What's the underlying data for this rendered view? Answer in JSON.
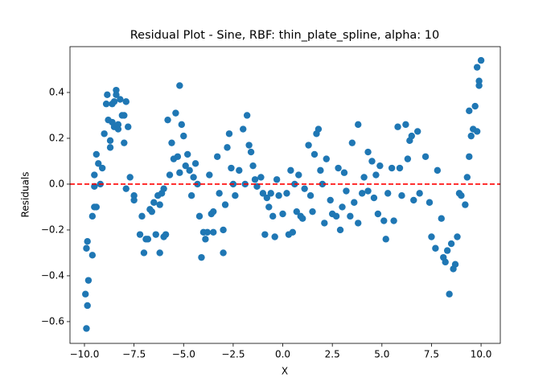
{
  "chart_data": {
    "type": "scatter",
    "title": "Residual Plot - Sine, RBF: thin_plate_spline, alpha: 10",
    "x_label": "X",
    "y_label": "Residuals",
    "color": "#1f77b4",
    "hline": 0,
    "hline_color": "red",
    "xlim": [
      -10.73,
      10.97
    ],
    "ylim": [
      -0.695,
      0.6
    ],
    "xticks": [
      {
        "value": -10,
        "label": "−10.0"
      },
      {
        "value": -7.5,
        "label": "−7.5"
      },
      {
        "value": -5,
        "label": "−5.0"
      },
      {
        "value": -2.5,
        "label": "−2.5"
      },
      {
        "value": 0,
        "label": "0.0"
      },
      2.5,
      {
        "value": 5,
        "label": "5.0"
      },
      7.5,
      {
        "value": 10,
        "label": "10.0"
      }
    ],
    "yticks": [
      {
        "value": -0.6,
        "label": "−0.6"
      },
      {
        "value": -0.4,
        "label": "−0.4"
      },
      {
        "value": -0.2,
        "label": "−0.2"
      },
      {
        "value": 0,
        "label": "0.0"
      },
      0.2,
      0.4
    ],
    "x": [
      -9.9,
      -9.95,
      -9.85,
      -9.8,
      -9.9,
      -9.85,
      -9.6,
      -9.6,
      -9.5,
      -9.4,
      -9.5,
      -9.4,
      -9.3,
      -9.2,
      -9.5,
      -9.1,
      -9.0,
      -8.9,
      -8.85,
      -8.8,
      -8.7,
      -8.7,
      -8.6,
      -8.6,
      -8.5,
      -8.5,
      -8.4,
      -8.4,
      -8.3,
      -8.3,
      -8.2,
      -8.1,
      -8.0,
      -8.0,
      -7.9,
      -7.9,
      -7.8,
      -7.7,
      -7.5,
      -7.5,
      -7.2,
      -7.1,
      -7.0,
      -6.9,
      -6.8,
      -6.7,
      -6.6,
      -6.5,
      -6.4,
      -6.3,
      -6.2,
      -6.2,
      -6.1,
      -6.0,
      -6.0,
      -5.9,
      -5.8,
      -5.7,
      -5.6,
      -5.5,
      -5.4,
      -5.3,
      -5.2,
      -5.2,
      -5.1,
      -5.0,
      -4.9,
      -4.8,
      -4.7,
      -4.6,
      -4.5,
      -4.4,
      -4.3,
      -4.2,
      -4.1,
      -4.0,
      -3.9,
      -3.8,
      -3.7,
      -3.6,
      -3.5,
      -3.5,
      -3.3,
      -3.2,
      -3.0,
      -3.0,
      -2.9,
      -2.8,
      -2.7,
      -2.6,
      -2.5,
      -2.4,
      -2.2,
      -2.0,
      -1.9,
      -1.8,
      -1.7,
      -1.6,
      -1.5,
      -1.4,
      -1.3,
      -1.1,
      -1.0,
      -0.9,
      -0.8,
      -0.7,
      -0.6,
      -0.5,
      -0.4,
      -0.3,
      -0.2,
      0.0,
      0.2,
      0.3,
      0.4,
      0.5,
      0.6,
      0.7,
      0.8,
      0.9,
      1.0,
      1.1,
      1.3,
      1.4,
      1.5,
      1.6,
      1.7,
      1.8,
      1.9,
      2.0,
      2.1,
      2.2,
      2.4,
      2.5,
      2.7,
      2.8,
      2.9,
      3.0,
      3.1,
      3.2,
      3.4,
      3.5,
      3.6,
      3.8,
      3.8,
      4.0,
      4.1,
      4.3,
      4.3,
      4.5,
      4.6,
      4.7,
      4.8,
      4.9,
      5.1,
      5.2,
      5.3,
      5.5,
      5.6,
      5.8,
      5.9,
      6.0,
      6.2,
      6.3,
      6.4,
      6.5,
      6.6,
      6.8,
      6.9,
      7.2,
      7.4,
      7.5,
      7.7,
      7.8,
      8.0,
      8.1,
      8.2,
      8.3,
      8.4,
      8.5,
      8.6,
      8.7,
      8.8,
      8.9,
      9.0,
      9.2,
      9.3,
      9.4,
      9.4,
      9.5,
      9.6,
      9.7,
      9.8,
      9.9,
      9.9,
      10.0,
      9.8
    ],
    "values": [
      -0.63,
      -0.48,
      -0.53,
      -0.42,
      -0.28,
      -0.25,
      -0.31,
      -0.14,
      -0.1,
      -0.1,
      0.04,
      0.13,
      0.09,
      0.0,
      -0.01,
      0.07,
      0.22,
      0.35,
      0.39,
      0.28,
      0.19,
      0.16,
      0.27,
      0.35,
      0.36,
      0.25,
      0.41,
      0.39,
      0.26,
      0.24,
      0.37,
      0.3,
      0.18,
      0.3,
      0.36,
      -0.02,
      0.25,
      0.03,
      -0.05,
      -0.07,
      -0.22,
      -0.14,
      -0.3,
      -0.24,
      -0.24,
      -0.11,
      -0.12,
      -0.08,
      -0.22,
      -0.05,
      -0.3,
      -0.09,
      -0.04,
      -0.02,
      -0.23,
      -0.22,
      0.28,
      0.04,
      0.18,
      0.11,
      0.31,
      0.12,
      0.43,
      0.05,
      0.26,
      0.21,
      0.08,
      0.13,
      0.06,
      -0.05,
      0.03,
      0.09,
      0.0,
      -0.14,
      -0.32,
      -0.21,
      -0.24,
      -0.21,
      0.04,
      -0.13,
      -0.12,
      -0.21,
      0.12,
      -0.04,
      -0.3,
      -0.2,
      -0.09,
      0.16,
      0.22,
      0.07,
      0.0,
      -0.05,
      0.06,
      0.24,
      0.0,
      0.3,
      0.17,
      0.14,
      0.08,
      0.02,
      -0.01,
      0.03,
      -0.04,
      -0.22,
      -0.06,
      -0.1,
      -0.04,
      -0.14,
      -0.23,
      0.02,
      -0.05,
      -0.13,
      -0.04,
      -0.22,
      0.06,
      -0.21,
      0.0,
      -0.12,
      0.04,
      -0.14,
      -0.15,
      -0.02,
      0.17,
      -0.05,
      -0.12,
      0.13,
      0.22,
      0.24,
      0.06,
      0.0,
      -0.17,
      0.11,
      -0.07,
      -0.13,
      -0.14,
      0.07,
      -0.2,
      -0.1,
      0.05,
      -0.03,
      -0.14,
      0.18,
      -0.08,
      0.26,
      -0.17,
      -0.04,
      0.03,
      0.14,
      -0.03,
      0.1,
      -0.06,
      0.04,
      -0.13,
      0.08,
      -0.16,
      -0.24,
      -0.04,
      0.07,
      -0.16,
      0.25,
      0.07,
      -0.05,
      0.26,
      0.11,
      0.19,
      0.21,
      -0.07,
      0.23,
      -0.04,
      0.12,
      -0.08,
      -0.23,
      -0.28,
      0.06,
      -0.15,
      -0.32,
      -0.34,
      -0.29,
      -0.48,
      -0.26,
      -0.37,
      -0.35,
      -0.23,
      -0.04,
      -0.05,
      -0.09,
      0.03,
      0.12,
      0.32,
      0.21,
      0.24,
      0.34,
      0.51,
      0.45,
      0.43,
      0.54,
      0.23
    ]
  }
}
